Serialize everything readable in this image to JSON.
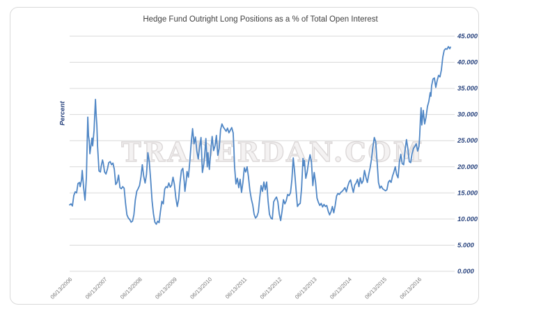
{
  "window": {
    "title": "Hedge Fund Outright Long Positions chart"
  },
  "colors": {
    "line": "#4f86c5",
    "grid": "#d9d9d9",
    "y_axis_text": "#26417c",
    "x_axis_text": "#767676",
    "title_text": "#3f3f3f",
    "watermark_outline": "#dcd8d8",
    "frame_border": "#d9d9d9"
  },
  "chart_data": {
    "type": "line",
    "title": "Hedge Fund Outright Long Positions as a % of Total Open Interest",
    "xlabel": "",
    "ylabel": "Percent",
    "ylim": [
      0,
      45
    ],
    "y_tick_step": 5,
    "y_tick_labels": [
      "0.000",
      "5.000",
      "10.000",
      "15.000",
      "20.000",
      "25.000",
      "30.000",
      "35.000",
      "40.000",
      "45.000"
    ],
    "x_tick_labels": [
      "06/13/2006",
      "06/13/2007",
      "06/13/2008",
      "06/13/2009",
      "06/13/2010",
      "06/13/2011",
      "06/13/2012",
      "06/13/2013",
      "06/13/2014",
      "06/13/2015",
      "06/13/2016"
    ],
    "x_tick_weeks": [
      0,
      50,
      100,
      150,
      200,
      250,
      300,
      350,
      400,
      450,
      500
    ],
    "x_range_weeks": [
      0,
      546
    ],
    "grid": "horizontal",
    "legend": "none",
    "watermark": "TRADERDAN.COM",
    "series": [
      {
        "name": "Hedge fund outright long positions (% of total open interest), weekly",
        "color": "#4f86c5",
        "points": [
          [
            0,
            12.7
          ],
          [
            2,
            12.9
          ],
          [
            4,
            12.5
          ],
          [
            6,
            14.5
          ],
          [
            8,
            15.2
          ],
          [
            10,
            15.0
          ],
          [
            12,
            16.8
          ],
          [
            14,
            17.0
          ],
          [
            15,
            16.2
          ],
          [
            17,
            17.5
          ],
          [
            18,
            19.3
          ],
          [
            20,
            16.0
          ],
          [
            22,
            13.6
          ],
          [
            24,
            18.0
          ],
          [
            25,
            24.0
          ],
          [
            26,
            29.5
          ],
          [
            27,
            26.0
          ],
          [
            28,
            25.0
          ],
          [
            29,
            22.5
          ],
          [
            30,
            23.5
          ],
          [
            32,
            25.5
          ],
          [
            33,
            24.0
          ],
          [
            35,
            27.0
          ],
          [
            36,
            30.0
          ],
          [
            37,
            32.9
          ],
          [
            38,
            30.0
          ],
          [
            39,
            28.0
          ],
          [
            40,
            24.0
          ],
          [
            41,
            21.5
          ],
          [
            42,
            19.2
          ],
          [
            44,
            19.0
          ],
          [
            45,
            20.0
          ],
          [
            47,
            21.3
          ],
          [
            48,
            20.8
          ],
          [
            50,
            19.0
          ],
          [
            52,
            18.6
          ],
          [
            54,
            19.5
          ],
          [
            56,
            20.8
          ],
          [
            58,
            21.0
          ],
          [
            60,
            20.4
          ],
          [
            62,
            20.7
          ],
          [
            64,
            19.5
          ],
          [
            66,
            16.6
          ],
          [
            68,
            17.0
          ],
          [
            70,
            18.4
          ],
          [
            72,
            16.0
          ],
          [
            74,
            15.8
          ],
          [
            76,
            16.2
          ],
          [
            78,
            15.9
          ],
          [
            80,
            13.0
          ],
          [
            82,
            10.8
          ],
          [
            84,
            10.2
          ],
          [
            86,
            9.9
          ],
          [
            88,
            9.4
          ],
          [
            90,
            9.6
          ],
          [
            92,
            10.8
          ],
          [
            94,
            13.6
          ],
          [
            96,
            15.3
          ],
          [
            98,
            15.8
          ],
          [
            100,
            16.4
          ],
          [
            102,
            18.0
          ],
          [
            104,
            20.4
          ],
          [
            106,
            18.2
          ],
          [
            108,
            16.9
          ],
          [
            110,
            18.5
          ],
          [
            112,
            22.7
          ],
          [
            114,
            21.0
          ],
          [
            116,
            17.5
          ],
          [
            118,
            13.5
          ],
          [
            120,
            11.0
          ],
          [
            122,
            9.4
          ],
          [
            124,
            9.0
          ],
          [
            126,
            9.6
          ],
          [
            128,
            9.3
          ],
          [
            130,
            11.5
          ],
          [
            132,
            13.4
          ],
          [
            134,
            12.9
          ],
          [
            136,
            15.7
          ],
          [
            138,
            16.2
          ],
          [
            140,
            16.0
          ],
          [
            142,
            16.9
          ],
          [
            144,
            16.1
          ],
          [
            146,
            16.5
          ],
          [
            148,
            18.0
          ],
          [
            150,
            16.6
          ],
          [
            152,
            14.0
          ],
          [
            154,
            12.4
          ],
          [
            156,
            13.8
          ],
          [
            158,
            17.0
          ],
          [
            160,
            19.3
          ],
          [
            162,
            19.7
          ],
          [
            164,
            17.2
          ],
          [
            165,
            15.3
          ],
          [
            167,
            17.5
          ],
          [
            168,
            19.1
          ],
          [
            170,
            18.0
          ],
          [
            172,
            21.0
          ],
          [
            174,
            24.5
          ],
          [
            176,
            27.3
          ],
          [
            178,
            24.4
          ],
          [
            180,
            25.7
          ],
          [
            182,
            23.0
          ],
          [
            184,
            21.5
          ],
          [
            186,
            23.8
          ],
          [
            188,
            25.6
          ],
          [
            190,
            18.9
          ],
          [
            192,
            20.5
          ],
          [
            193,
            21.8
          ],
          [
            195,
            25.4
          ],
          [
            197,
            20.0
          ],
          [
            198,
            22.7
          ],
          [
            200,
            19.5
          ],
          [
            202,
            23.0
          ],
          [
            204,
            25.8
          ],
          [
            206,
            23.1
          ],
          [
            208,
            24.0
          ],
          [
            210,
            26.0
          ],
          [
            212,
            22.2
          ],
          [
            214,
            23.5
          ],
          [
            216,
            27.1
          ],
          [
            218,
            28.2
          ],
          [
            220,
            27.6
          ],
          [
            222,
            27.2
          ],
          [
            224,
            26.8
          ],
          [
            226,
            27.4
          ],
          [
            228,
            26.5
          ],
          [
            230,
            27.0
          ],
          [
            232,
            27.5
          ],
          [
            234,
            26.5
          ],
          [
            235,
            23.6
          ],
          [
            236,
            20.0
          ],
          [
            238,
            16.7
          ],
          [
            240,
            17.8
          ],
          [
            242,
            16.0
          ],
          [
            244,
            17.6
          ],
          [
            246,
            15.1
          ],
          [
            248,
            17.0
          ],
          [
            250,
            19.8
          ],
          [
            252,
            19.0
          ],
          [
            254,
            20.0
          ],
          [
            256,
            18.0
          ],
          [
            258,
            15.5
          ],
          [
            260,
            13.8
          ],
          [
            262,
            12.7
          ],
          [
            264,
            10.9
          ],
          [
            266,
            10.2
          ],
          [
            268,
            10.5
          ],
          [
            270,
            11.3
          ],
          [
            272,
            14.0
          ],
          [
            274,
            16.4
          ],
          [
            276,
            15.3
          ],
          [
            278,
            17.1
          ],
          [
            280,
            15.6
          ],
          [
            282,
            17.1
          ],
          [
            284,
            13.5
          ],
          [
            286,
            10.9
          ],
          [
            288,
            10.2
          ],
          [
            290,
            10.0
          ],
          [
            292,
            13.3
          ],
          [
            294,
            13.8
          ],
          [
            296,
            14.2
          ],
          [
            298,
            13.3
          ],
          [
            300,
            11.0
          ],
          [
            302,
            9.7
          ],
          [
            304,
            11.5
          ],
          [
            306,
            13.7
          ],
          [
            308,
            12.9
          ],
          [
            310,
            13.5
          ],
          [
            312,
            14.7
          ],
          [
            314,
            14.5
          ],
          [
            316,
            15.0
          ],
          [
            318,
            17.5
          ],
          [
            320,
            21.7
          ],
          [
            322,
            19.0
          ],
          [
            324,
            15.6
          ],
          [
            326,
            12.4
          ],
          [
            328,
            12.8
          ],
          [
            330,
            13.0
          ],
          [
            332,
            16.0
          ],
          [
            334,
            21.6
          ],
          [
            335,
            20.2
          ],
          [
            336,
            21.2
          ],
          [
            338,
            17.8
          ],
          [
            340,
            19.0
          ],
          [
            342,
            21.0
          ],
          [
            344,
            22.3
          ],
          [
            346,
            21.0
          ],
          [
            348,
            16.4
          ],
          [
            350,
            18.9
          ],
          [
            352,
            17.0
          ],
          [
            354,
            14.0
          ],
          [
            356,
            13.2
          ],
          [
            358,
            12.6
          ],
          [
            360,
            13.0
          ],
          [
            362,
            12.3
          ],
          [
            364,
            12.8
          ],
          [
            366,
            12.4
          ],
          [
            368,
            12.6
          ],
          [
            370,
            11.5
          ],
          [
            372,
            10.8
          ],
          [
            374,
            11.4
          ],
          [
            376,
            12.4
          ],
          [
            378,
            11.2
          ],
          [
            380,
            12.6
          ],
          [
            382,
            14.4
          ],
          [
            384,
            14.9
          ],
          [
            386,
            14.7
          ],
          [
            388,
            15.1
          ],
          [
            390,
            15.3
          ],
          [
            392,
            15.6
          ],
          [
            394,
            16.0
          ],
          [
            396,
            15.2
          ],
          [
            398,
            16.3
          ],
          [
            400,
            17.1
          ],
          [
            402,
            17.5
          ],
          [
            404,
            16.2
          ],
          [
            406,
            15.1
          ],
          [
            408,
            16.5
          ],
          [
            410,
            16.9
          ],
          [
            412,
            17.6
          ],
          [
            414,
            16.2
          ],
          [
            416,
            17.9
          ],
          [
            418,
            16.8
          ],
          [
            420,
            17.3
          ],
          [
            422,
            19.3
          ],
          [
            424,
            18.0
          ],
          [
            426,
            17.0
          ],
          [
            428,
            18.5
          ],
          [
            430,
            19.8
          ],
          [
            432,
            21.5
          ],
          [
            434,
            23.8
          ],
          [
            436,
            25.6
          ],
          [
            438,
            24.8
          ],
          [
            440,
            21.0
          ],
          [
            442,
            17.0
          ],
          [
            444,
            15.9
          ],
          [
            446,
            16.3
          ],
          [
            448,
            15.8
          ],
          [
            450,
            15.6
          ],
          [
            452,
            15.4
          ],
          [
            454,
            15.6
          ],
          [
            456,
            17.0
          ],
          [
            458,
            17.4
          ],
          [
            460,
            17.0
          ],
          [
            462,
            18.2
          ],
          [
            464,
            19.0
          ],
          [
            466,
            20.0
          ],
          [
            468,
            18.5
          ],
          [
            470,
            17.9
          ],
          [
            472,
            21.0
          ],
          [
            474,
            22.4
          ],
          [
            476,
            20.6
          ],
          [
            478,
            20.4
          ],
          [
            480,
            23.2
          ],
          [
            482,
            25.2
          ],
          [
            484,
            23.5
          ],
          [
            486,
            21.0
          ],
          [
            488,
            20.8
          ],
          [
            490,
            22.5
          ],
          [
            492,
            23.5
          ],
          [
            494,
            23.9
          ],
          [
            496,
            24.4
          ],
          [
            498,
            23.0
          ],
          [
            500,
            23.9
          ],
          [
            501,
            26.0
          ],
          [
            502,
            29.0
          ],
          [
            503,
            31.3
          ],
          [
            504,
            28.0
          ],
          [
            506,
            30.8
          ],
          [
            508,
            28.2
          ],
          [
            510,
            29.5
          ],
          [
            512,
            31.5
          ],
          [
            514,
            32.5
          ],
          [
            516,
            34.2
          ],
          [
            517,
            33.5
          ],
          [
            518,
            35.5
          ],
          [
            520,
            36.8
          ],
          [
            522,
            37.0
          ],
          [
            524,
            35.2
          ],
          [
            526,
            36.5
          ],
          [
            528,
            37.5
          ],
          [
            530,
            37.2
          ],
          [
            532,
            38.5
          ],
          [
            534,
            41.0
          ],
          [
            536,
            42.3
          ],
          [
            538,
            42.6
          ],
          [
            540,
            42.5
          ],
          [
            542,
            43.0
          ],
          [
            544,
            42.6
          ],
          [
            545,
            42.9
          ]
        ]
      }
    ]
  }
}
